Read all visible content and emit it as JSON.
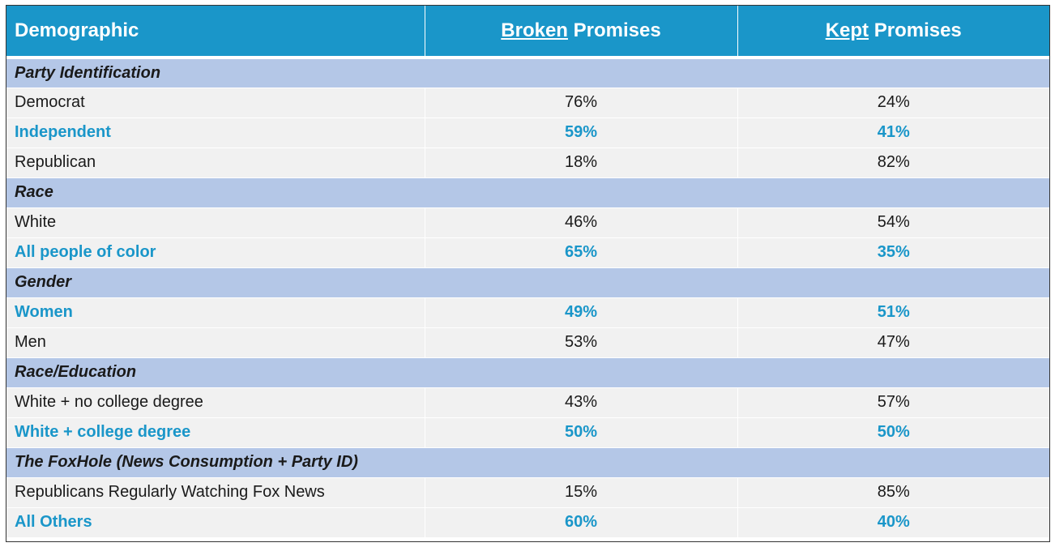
{
  "header": {
    "demographic": "Demographic",
    "broken_underlined": "Broken",
    "broken_rest": " Promises",
    "kept_underlined": "Kept",
    "kept_rest": " Promises"
  },
  "sections": [
    {
      "title": "Party Identification",
      "rows": [
        {
          "label": "Democrat",
          "broken": "76%",
          "kept": "24%",
          "highlight": false
        },
        {
          "label": "Independent",
          "broken": "59%",
          "kept": "41%",
          "highlight": true
        },
        {
          "label": "Republican",
          "broken": "18%",
          "kept": "82%",
          "highlight": false
        }
      ]
    },
    {
      "title": "Race",
      "rows": [
        {
          "label": "White",
          "broken": "46%",
          "kept": "54%",
          "highlight": false
        },
        {
          "label": "All people of color",
          "broken": "65%",
          "kept": "35%",
          "highlight": true
        }
      ]
    },
    {
      "title": "Gender",
      "rows": [
        {
          "label": "Women",
          "broken": "49%",
          "kept": "51%",
          "highlight": true
        },
        {
          "label": "Men",
          "broken": "53%",
          "kept": "47%",
          "highlight": false
        }
      ]
    },
    {
      "title": "Race/Education",
      "rows": [
        {
          "label": "White + no college degree",
          "broken": "43%",
          "kept": "57%",
          "highlight": false
        },
        {
          "label": "White + college degree",
          "broken": "50%",
          "kept": "50%",
          "highlight": true
        }
      ]
    },
    {
      "title": "The FoxHole (News Consumption + Party ID)",
      "rows": [
        {
          "label": "Republicans Regularly Watching Fox News",
          "broken": "15%",
          "kept": "85%",
          "highlight": false
        },
        {
          "label": "All Others",
          "broken": "60%",
          "kept": "40%",
          "highlight": true
        }
      ]
    }
  ],
  "colors": {
    "header_bg": "#1a96c9",
    "section_bg": "#b4c7e7",
    "row_bg": "#f1f1f1",
    "highlight_text": "#1a96c9"
  }
}
